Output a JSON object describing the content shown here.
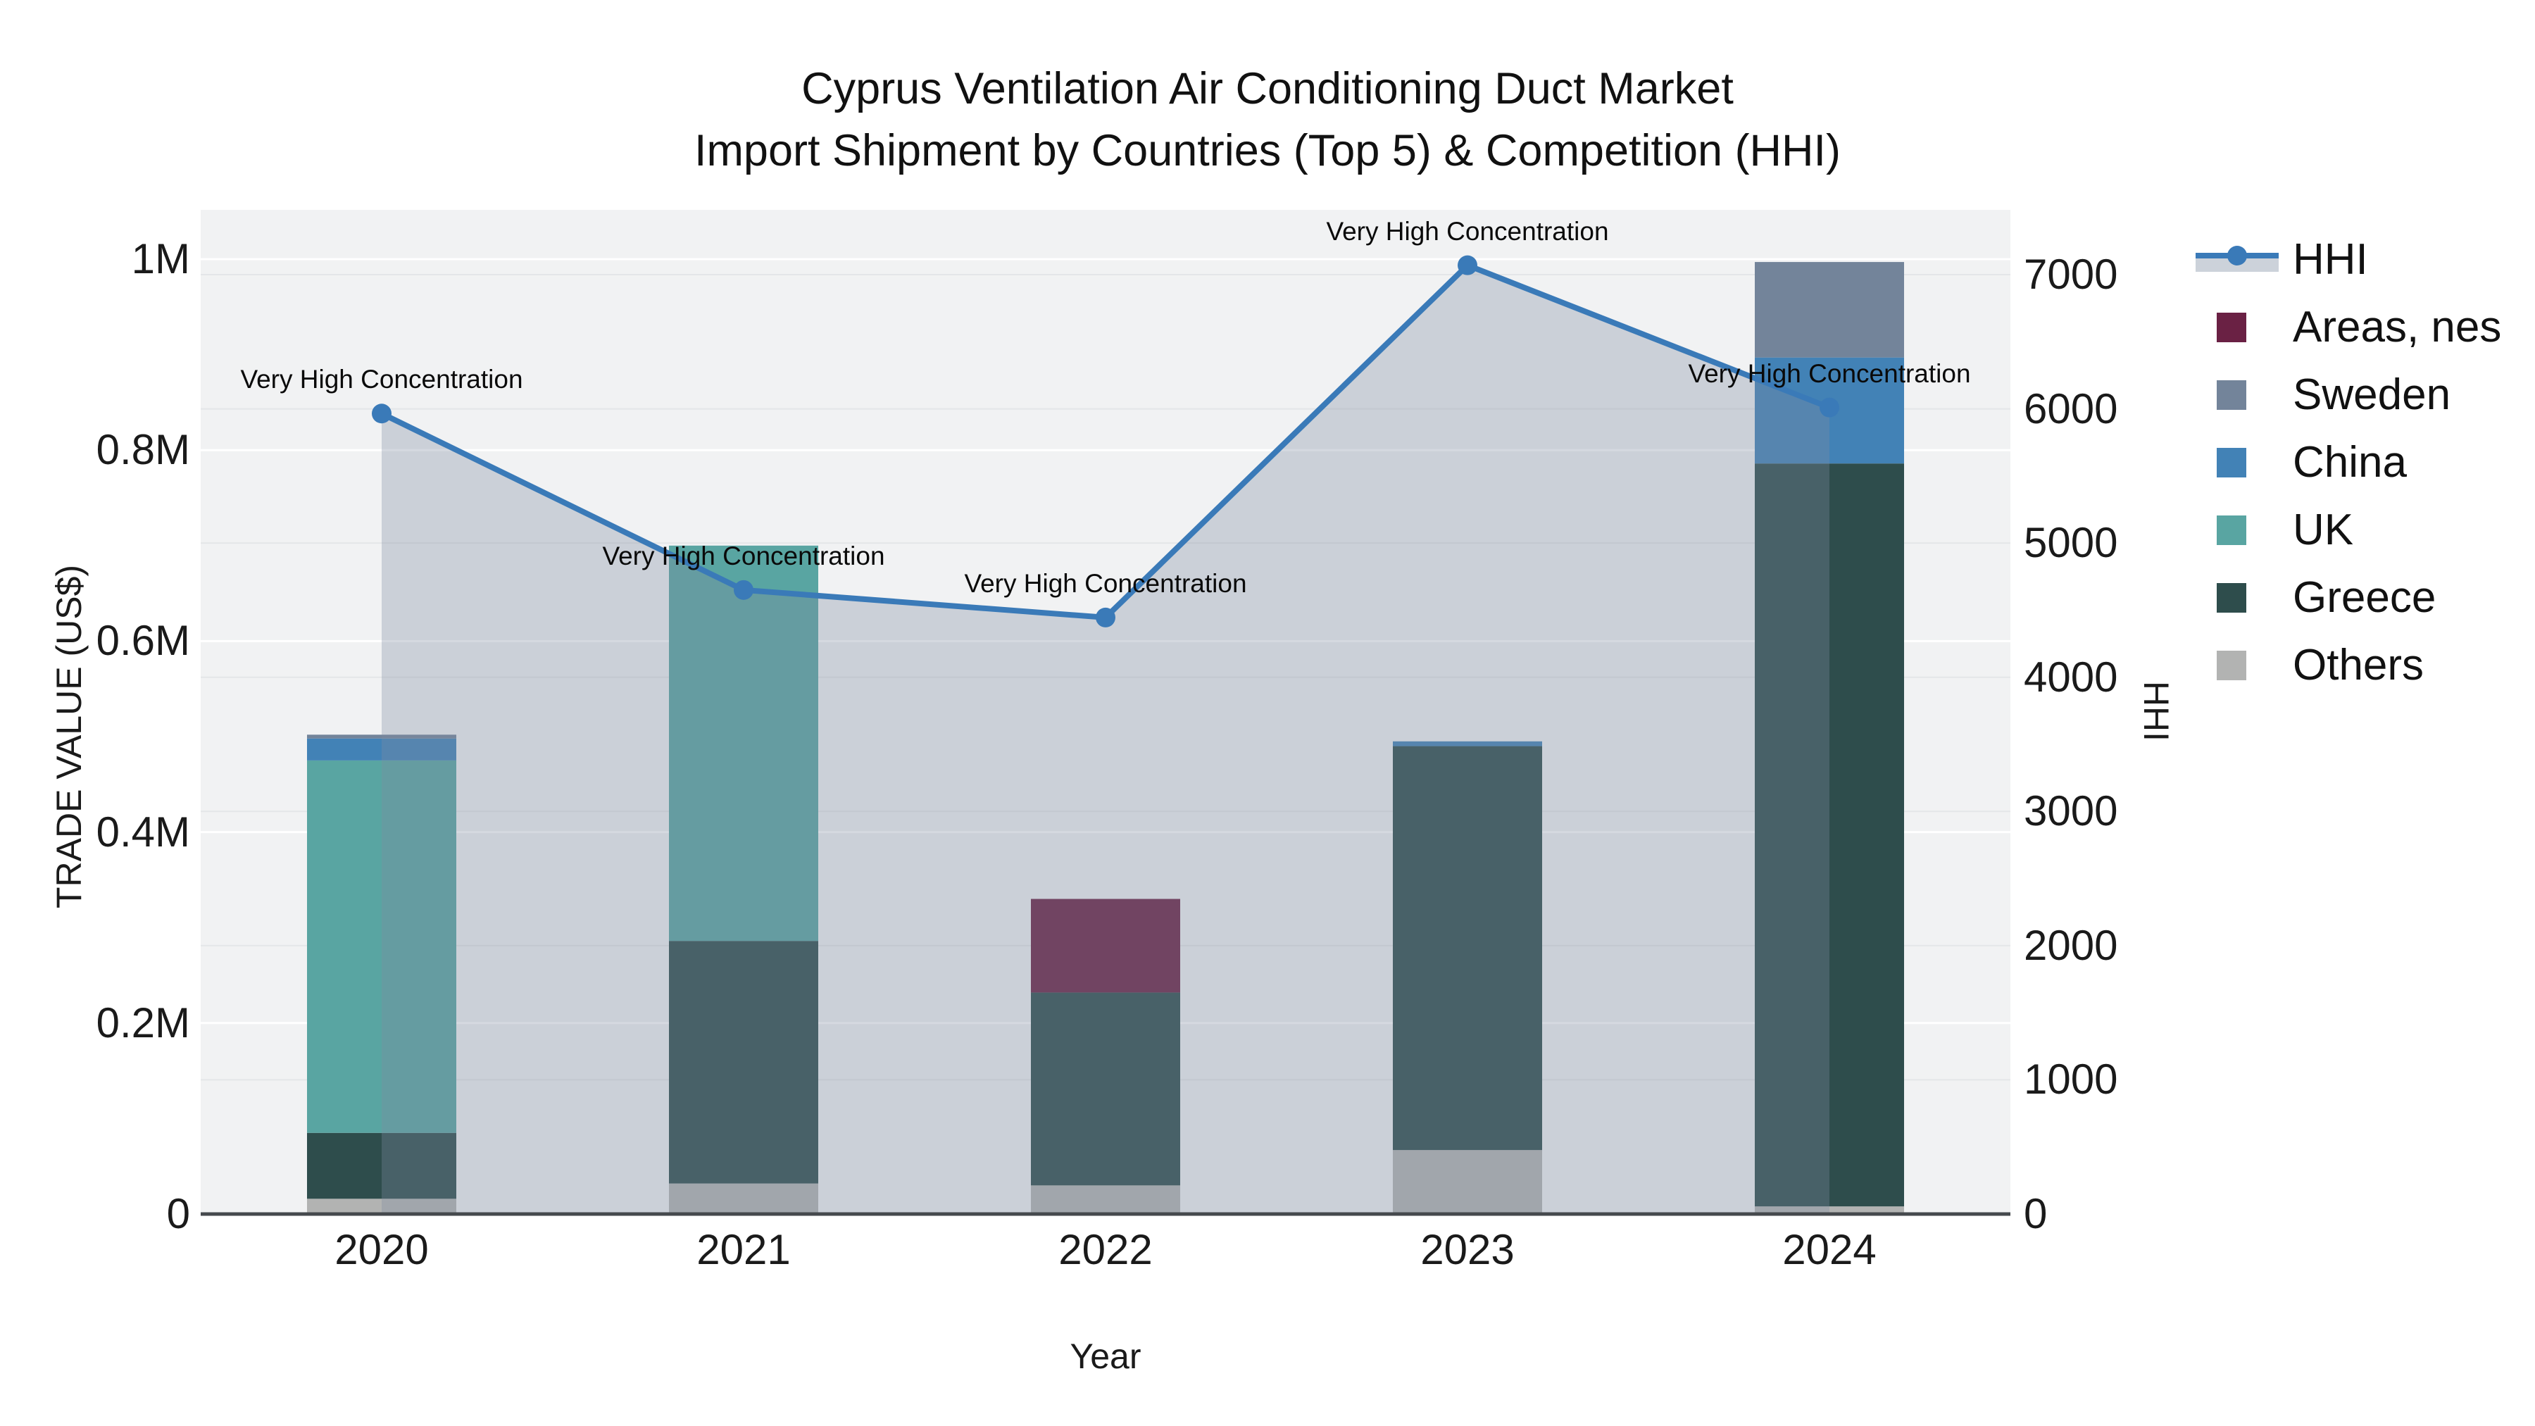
{
  "title": {
    "line1": "Cyprus Ventilation Air Conditioning Duct Market",
    "line2": "Import Shipment by Countries (Top 5) & Competition (HHI)"
  },
  "legend": {
    "items": [
      {
        "label": "HHI",
        "type": "line",
        "color": "#3a7ab8"
      },
      {
        "label": "Areas, nes",
        "type": "square",
        "color": "#6a2144"
      },
      {
        "label": "Sweden",
        "type": "square",
        "color": "#73849a"
      },
      {
        "label": "China",
        "type": "square",
        "color": "#4282b6"
      },
      {
        "label": "UK",
        "type": "square",
        "color": "#59a5a2"
      },
      {
        "label": "Greece",
        "type": "square",
        "color": "#2e4d4c"
      },
      {
        "label": "Others",
        "type": "square",
        "color": "#b2b3b2"
      }
    ]
  },
  "chart_data": {
    "type": "bar+line",
    "categories": [
      "2020",
      "2021",
      "2022",
      "2023",
      "2024"
    ],
    "bar_stack_order_bottom_to_top": [
      "Others",
      "Greece",
      "UK",
      "China",
      "Sweden",
      "Areas, nes"
    ],
    "series": [
      {
        "name": "Others",
        "color": "#b2b3b2",
        "values": [
          16000,
          32000,
          30000,
          67000,
          8000
        ]
      },
      {
        "name": "Greece",
        "color": "#2e4d4c",
        "values": [
          69000,
          254000,
          202000,
          423000,
          778000
        ]
      },
      {
        "name": "UK",
        "color": "#59a5a2",
        "values": [
          390000,
          414000,
          0,
          0,
          0
        ]
      },
      {
        "name": "China",
        "color": "#4282b6",
        "values": [
          23000,
          0,
          0,
          5000,
          111000
        ]
      },
      {
        "name": "Sweden",
        "color": "#73849a",
        "values": [
          4000,
          0,
          0,
          0,
          100000
        ]
      },
      {
        "name": "Areas, nes",
        "color": "#6a2144",
        "values": [
          0,
          0,
          98000,
          0,
          0
        ]
      }
    ],
    "line_series": {
      "name": "HHI",
      "color": "#3a7ab8",
      "fill_color": "rgba(126,140,160,0.33)",
      "values": [
        5965,
        4650,
        4445,
        7070,
        6010
      ]
    },
    "annotations": [
      "Very High Concentration",
      "Very High Concentration",
      "Very High Concentration",
      "Very High Concentration",
      "Very High Concentration"
    ],
    "x_axis": {
      "title": "Year"
    },
    "y_left": {
      "title": "TRADE VALUE (US$)",
      "tick_values": [
        0,
        200000,
        400000,
        600000,
        800000,
        1000000
      ],
      "tick_labels": [
        "0",
        "0.2M",
        "0.4M",
        "0.6M",
        "0.8M",
        "1M"
      ],
      "max": 1052000
    },
    "y_right": {
      "title": "HHI",
      "tick_values": [
        0,
        1000,
        2000,
        3000,
        4000,
        5000,
        6000,
        7000
      ],
      "tick_labels": [
        "0",
        "1000",
        "2000",
        "3000",
        "4000",
        "5000",
        "6000",
        "7000"
      ],
      "max": 7482
    }
  }
}
